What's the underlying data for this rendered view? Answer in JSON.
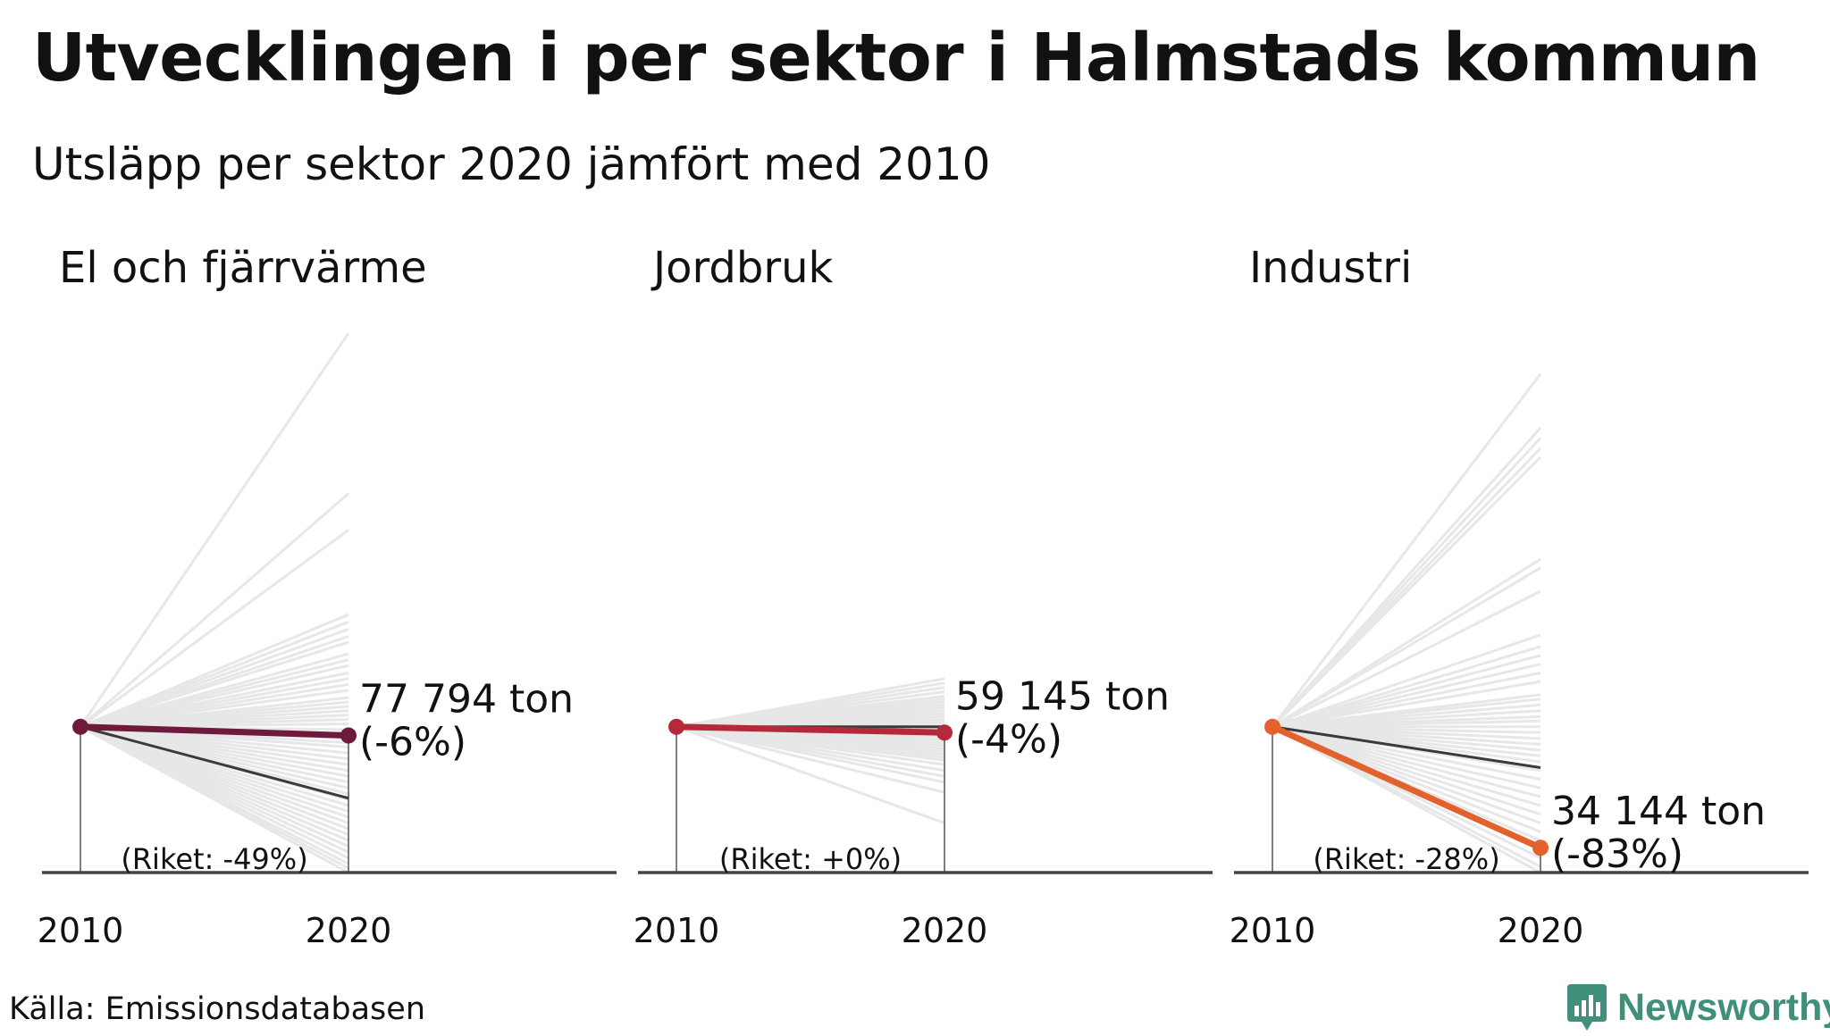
{
  "title": "Utvecklingen i per sektor i Halmstads kommun",
  "subtitle": "Utsläpp per sektor 2020 jämfört med 2010",
  "source": "Källa: Emissionsdatabasen",
  "logo": {
    "text": "Newsworthy",
    "color": "#3f8f7a"
  },
  "chart_data": [
    {
      "type": "line",
      "title": "El och fjärrvärme",
      "x": [
        "2010",
        "2020"
      ],
      "value_label": "77 794 ton",
      "change_label": "(-6%)",
      "riket_label": "(Riket: -49%)",
      "highlight": {
        "name": "Halmstad",
        "change_pct": -6,
        "color": "#6e1a3c"
      },
      "riket_change_pct": -49,
      "ylim_pct": [
        -100,
        270
      ],
      "background_changes_pct": [
        270,
        160,
        135,
        77,
        72,
        67,
        62,
        58,
        50,
        46,
        42,
        37,
        33,
        29,
        25,
        20,
        17,
        14,
        11,
        8,
        5,
        2,
        -2,
        -5,
        -8,
        -11,
        -14,
        -18,
        -22,
        -26,
        -30,
        -34,
        -38,
        -42,
        -46,
        -50,
        -54,
        -58,
        -62,
        -66,
        -70,
        -74,
        -78,
        -82,
        -86,
        -90,
        -94,
        -97,
        -100
      ]
    },
    {
      "type": "line",
      "title": "Jordbruk",
      "x": [
        "2010",
        "2020"
      ],
      "value_label": "59 145 ton",
      "change_label": "(-4%)",
      "riket_label": "(Riket: +0%)",
      "highlight": {
        "name": "Halmstad",
        "change_pct": -4,
        "color": "#b5293a"
      },
      "riket_change_pct": 0,
      "ylim_pct": [
        -100,
        270
      ],
      "background_changes_pct": [
        33,
        30,
        27,
        24,
        21,
        19,
        17,
        15,
        13,
        11,
        9,
        7,
        5,
        3,
        1,
        -1,
        -3,
        -5,
        -7,
        -9,
        -11,
        -13,
        -15,
        -17,
        -19,
        -21,
        -23,
        -26,
        -30,
        -34,
        -38,
        -45,
        -66
      ]
    },
    {
      "type": "line",
      "title": "Industri",
      "x": [
        "2010",
        "2020"
      ],
      "value_label": "34 144 ton",
      "change_label": "(-83%)",
      "riket_label": "(Riket: -28%)",
      "highlight": {
        "name": "Halmstad",
        "change_pct": -83,
        "color": "#e2622d"
      },
      "riket_change_pct": -28,
      "ylim_pct": [
        -100,
        270
      ],
      "background_changes_pct": [
        242,
        205,
        198,
        191,
        185,
        115,
        109,
        93,
        63,
        55,
        49,
        43,
        37,
        31,
        22,
        19,
        15,
        11,
        7,
        4,
        0,
        -4,
        -8,
        -12,
        -16,
        -20,
        -24,
        -30,
        -36,
        -42,
        -48,
        -54,
        -60,
        -66,
        -72,
        -78,
        -84,
        -90,
        -96,
        -100
      ]
    }
  ]
}
